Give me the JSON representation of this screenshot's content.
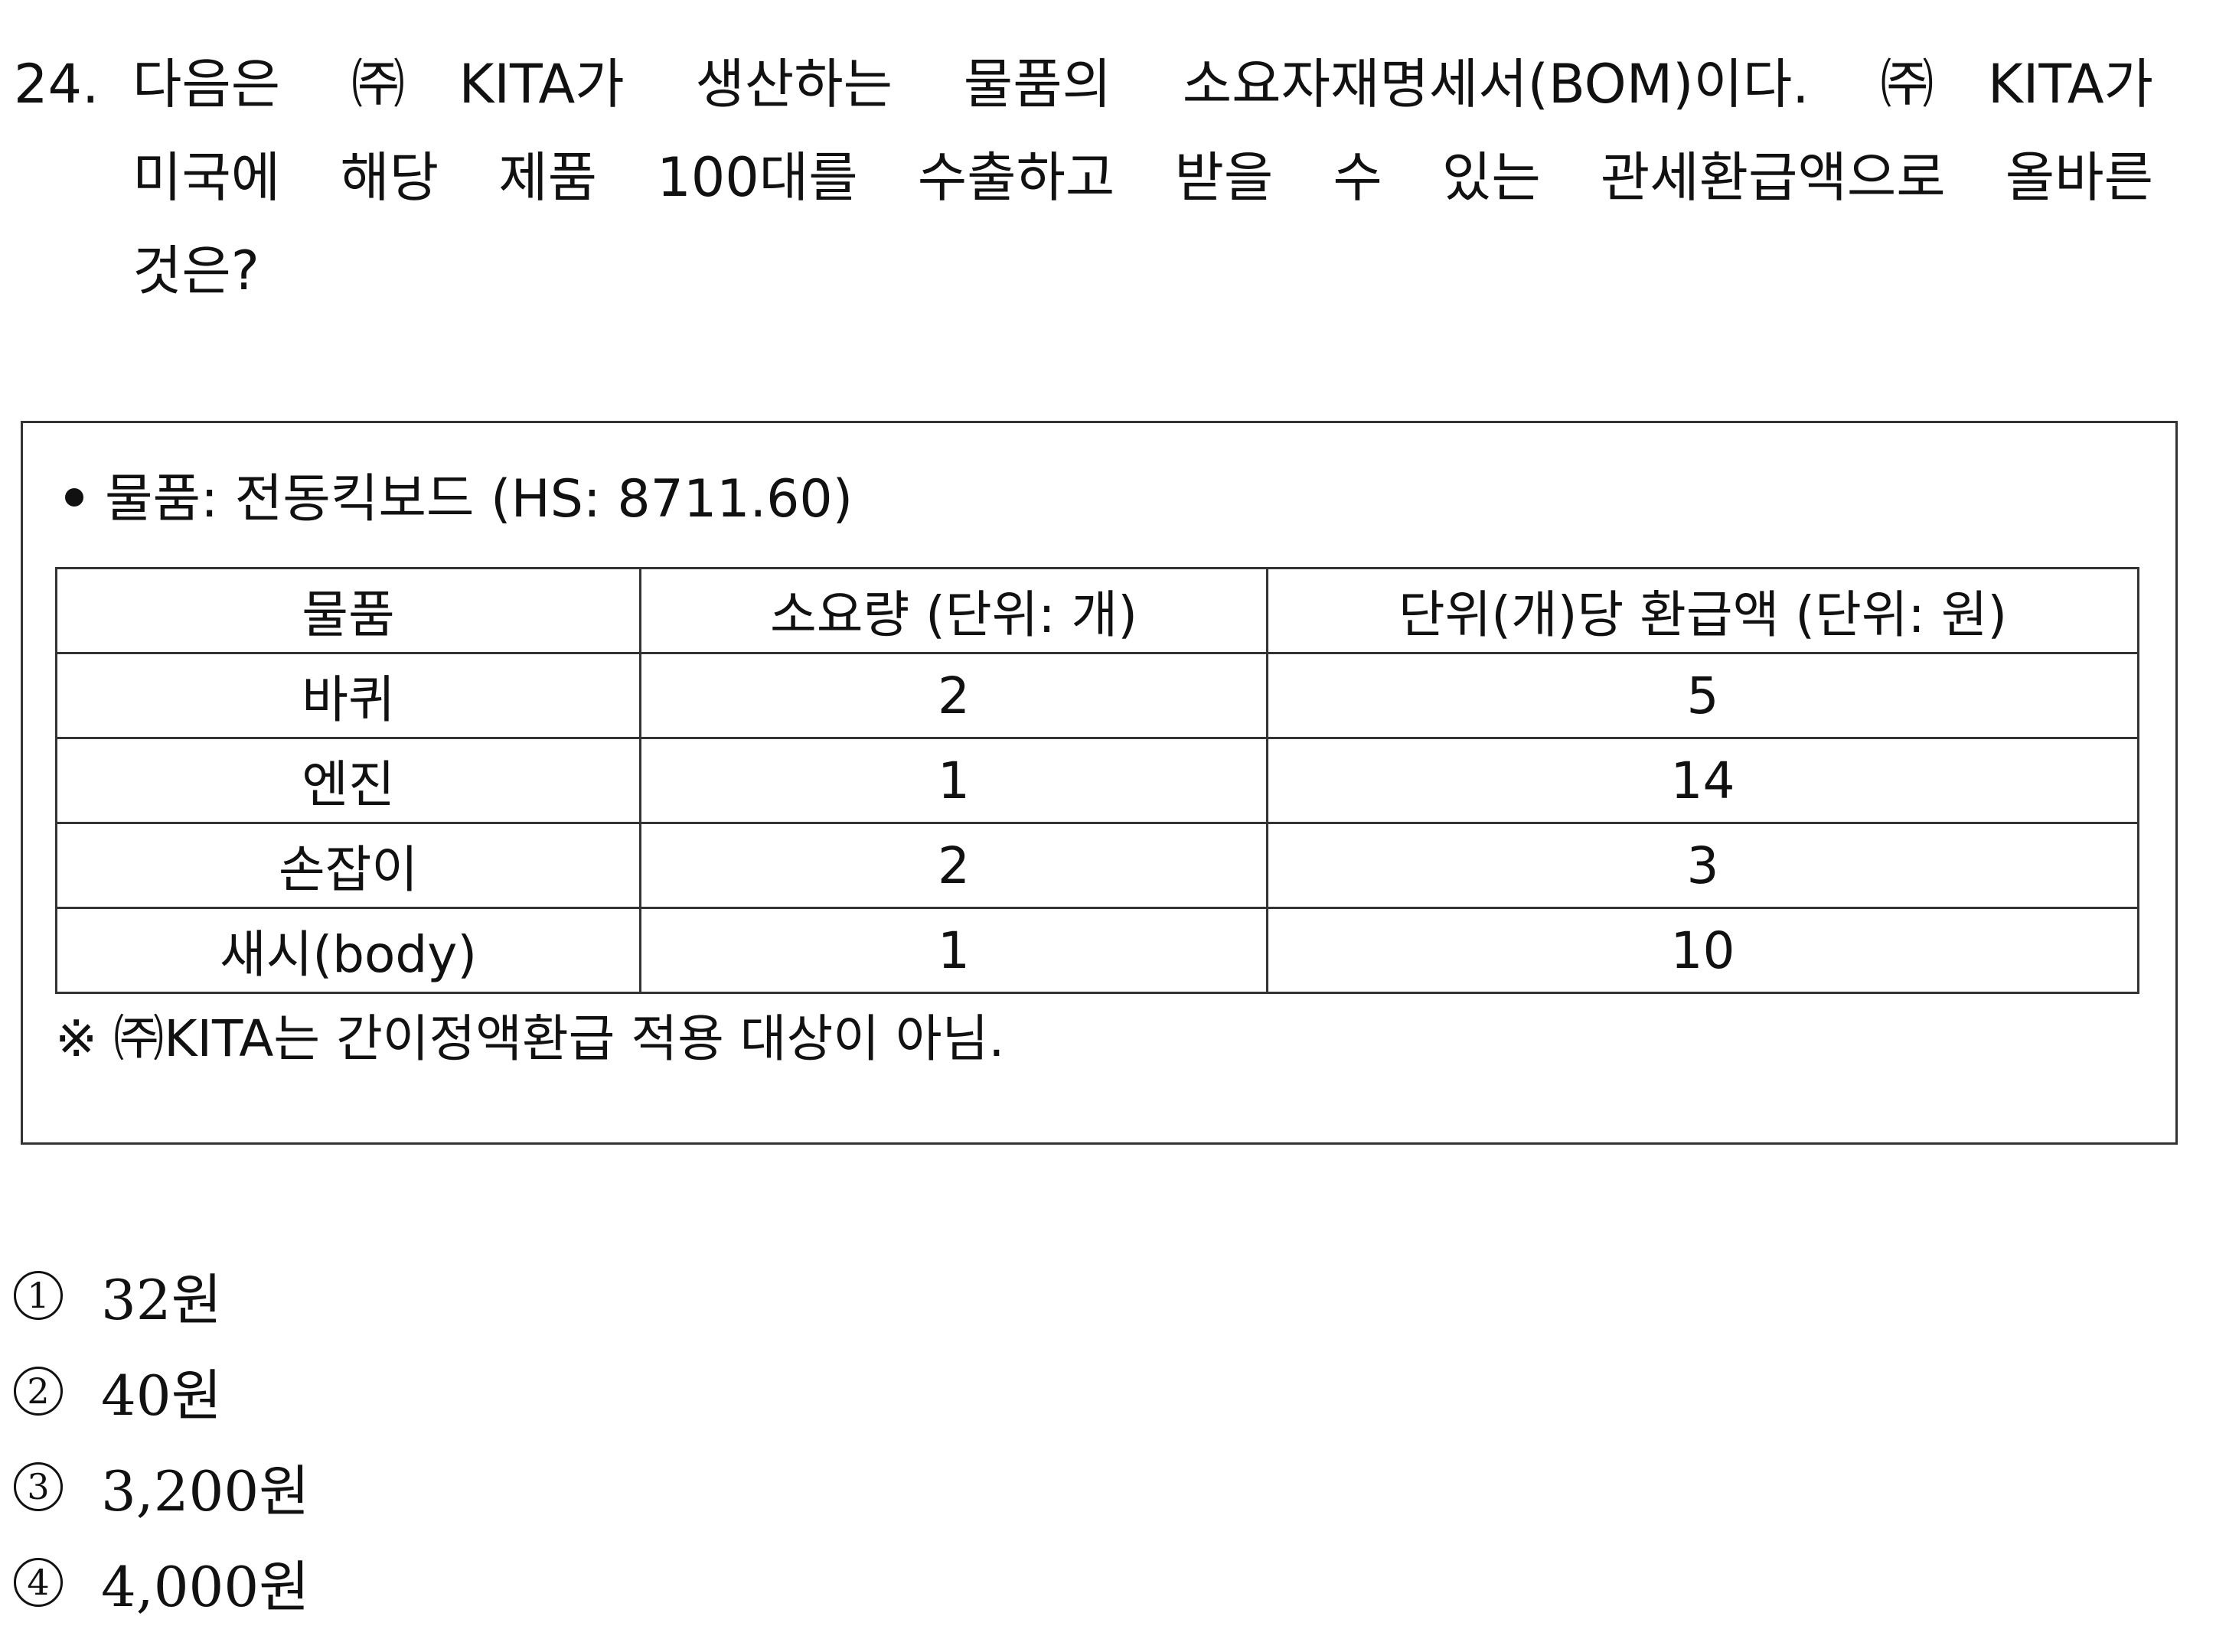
{
  "question": {
    "number": "24.",
    "lines": [
      "다음은 ㈜KITA가 생산하는 물품의 소요자재명세서(BOM)이다. ㈜KITA가",
      "미국에 해당 제품 100대를 수출하고 받을 수 있는 관세환급액으로 올바른",
      "것은?"
    ]
  },
  "box": {
    "item_line": "물품: 전동킥보드 (HS: 8711.60)",
    "table": {
      "headers": [
        "물품",
        "소요량 (단위: 개)",
        "단위(개)당 환급액 (단위: 원)"
      ],
      "rows": [
        [
          "바퀴",
          "2",
          "5"
        ],
        [
          "엔진",
          "1",
          "14"
        ],
        [
          "손잡이",
          "2",
          "3"
        ],
        [
          "새시(body)",
          "1",
          "10"
        ]
      ]
    },
    "note": "※ ㈜KITA는 간이정액환급 적용 대상이 아님."
  },
  "choices": [
    {
      "mark": "1",
      "text": "32원"
    },
    {
      "mark": "2",
      "text": "40원"
    },
    {
      "mark": "3",
      "text": "3,200원"
    },
    {
      "mark": "4",
      "text": "4,000원"
    }
  ]
}
